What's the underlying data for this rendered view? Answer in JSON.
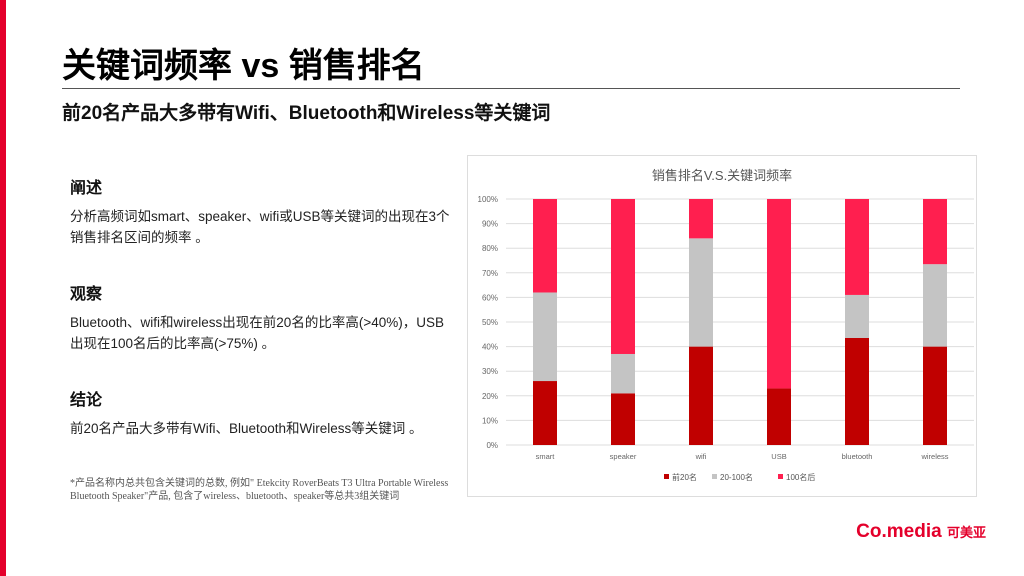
{
  "title": "关键词频率 vs 销售排名",
  "subtitle": "前20名产品大多带有Wifi、Bluetooth和Wireless等关键词",
  "sections": [
    {
      "heading": "阐述",
      "text": "分析高频词如smart、speaker、wifi或USB等关键词的出现在3个销售排名区间的频率 。"
    },
    {
      "heading": "观察",
      "text": "Bluetooth、wifi和wireless出现在前20名的比率高(>40%)，USB出现在100名后的比率高(>75%) 。"
    },
    {
      "heading": "结论",
      "text": "前20名产品大多带有Wifi、Bluetooth和Wireless等关键词 。"
    }
  ],
  "footnote": "*产品名称内总共包含关键词的总数, 例如\" Etekcity RoverBeats T3 Ultra Portable Wireless Bluetooth Speaker\"产品, 包含了wireless、bluetooth、speaker等总共3组关键词",
  "logo": {
    "main": "Co.media",
    "cn": "可美亚"
  },
  "colors": {
    "accent": "#e4002b",
    "top20": "#c00000",
    "mid": "#c4c4c4",
    "after100": "#ff1f4f"
  },
  "chart_data": {
    "type": "bar",
    "stacked": true,
    "title": "销售排名V.S.关键词频率",
    "categories": [
      "smart",
      "speaker",
      "wifi",
      "USB",
      "bluetooth",
      "wireless"
    ],
    "series": [
      {
        "name": "前20名",
        "values": [
          26,
          21,
          40,
          23,
          43.5,
          40
        ]
      },
      {
        "name": "20-100名",
        "values": [
          36,
          16,
          44,
          0,
          17.5,
          33.5
        ]
      },
      {
        "name": "100名后",
        "values": [
          38,
          63,
          16,
          77,
          39,
          26.5
        ]
      }
    ],
    "yticks": [
      "0%",
      "10%",
      "20%",
      "30%",
      "40%",
      "50%",
      "60%",
      "70%",
      "80%",
      "90%",
      "100%"
    ],
    "ylim": [
      0,
      100
    ],
    "grid": true,
    "legend": "bottom"
  }
}
